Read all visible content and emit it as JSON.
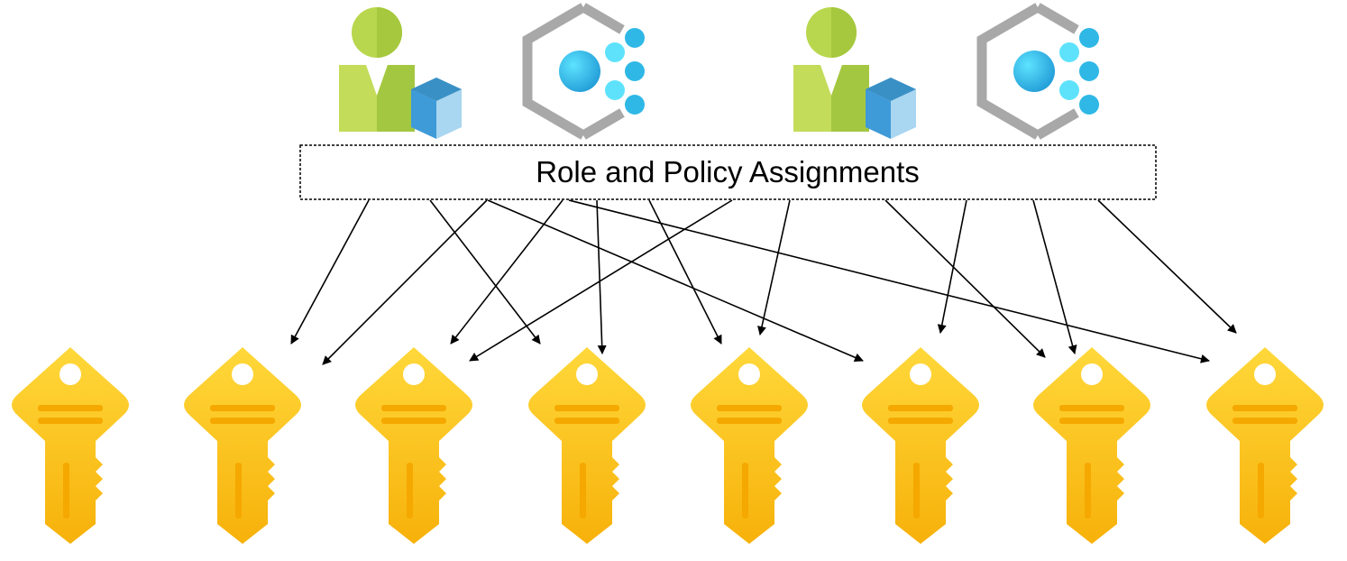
{
  "diagram": {
    "label": "Role and Policy Assignments",
    "principals": [
      {
        "icon": "user-cube-icon"
      },
      {
        "icon": "managed-identity-icon"
      },
      {
        "icon": "user-cube-icon"
      },
      {
        "icon": "managed-identity-icon"
      }
    ],
    "keys": [
      {
        "icon": "key-icon"
      },
      {
        "icon": "key-icon"
      },
      {
        "icon": "key-icon"
      },
      {
        "icon": "key-icon"
      },
      {
        "icon": "key-icon"
      },
      {
        "icon": "key-icon"
      },
      {
        "icon": "key-icon"
      },
      {
        "icon": "key-icon"
      }
    ],
    "edge_count": 14
  },
  "colors": {
    "user_green_light": "#c3dc5a",
    "user_green_dark": "#9fc33c",
    "cube_blue": "#3d9fd6",
    "cube_light": "#a9d6f0",
    "hex_gray": "#a8a8a8",
    "dot_blue": "#35c0e8",
    "key_gold": "#ffcb22",
    "key_orange": "#f5a800",
    "arrow": "#000000"
  }
}
